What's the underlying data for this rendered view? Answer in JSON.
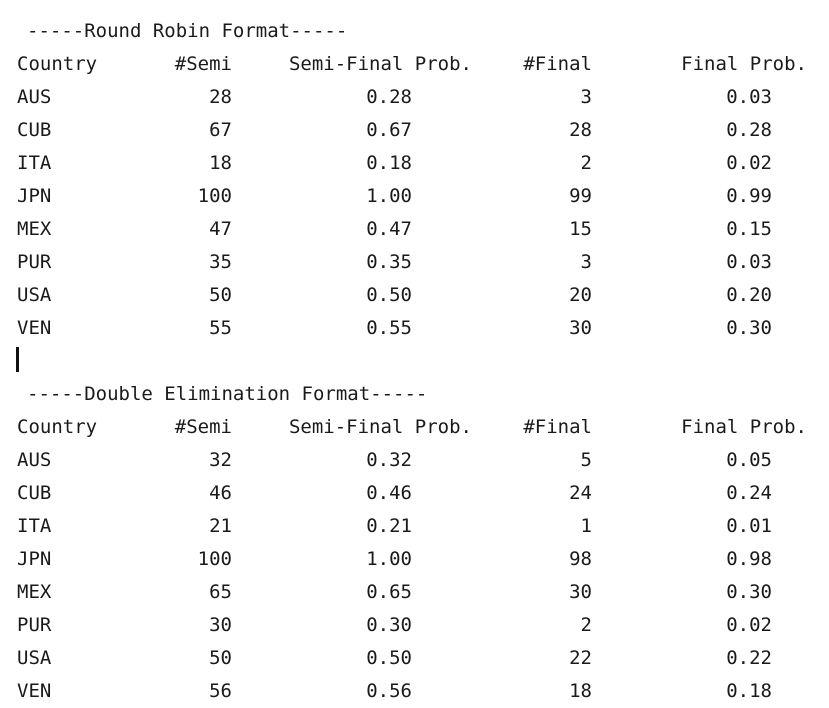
{
  "sections": [
    {
      "title": "-----Round Robin Format-----",
      "headers": [
        "Country",
        "#Semi",
        "Semi-Final Prob.",
        "#Final",
        "Final Prob."
      ],
      "rows": [
        [
          "AUS",
          "28",
          "0.28",
          "3",
          "0.03"
        ],
        [
          "CUB",
          "67",
          "0.67",
          "28",
          "0.28"
        ],
        [
          "ITA",
          "18",
          "0.18",
          "2",
          "0.02"
        ],
        [
          "JPN",
          "100",
          "1.00",
          "99",
          "0.99"
        ],
        [
          "MEX",
          "47",
          "0.47",
          "15",
          "0.15"
        ],
        [
          "PUR",
          "35",
          "0.35",
          "3",
          "0.03"
        ],
        [
          "USA",
          "50",
          "0.50",
          "20",
          "0.20"
        ],
        [
          "VEN",
          "55",
          "0.55",
          "30",
          "0.30"
        ]
      ]
    },
    {
      "title": "-----Double Elimination Format-----",
      "headers": [
        "Country",
        "#Semi",
        "Semi-Final Prob.",
        "#Final",
        "Final Prob."
      ],
      "rows": [
        [
          "AUS",
          "32",
          "0.32",
          "5",
          "0.05"
        ],
        [
          "CUB",
          "46",
          "0.46",
          "24",
          "0.24"
        ],
        [
          "ITA",
          "21",
          "0.21",
          "1",
          "0.01"
        ],
        [
          "JPN",
          "100",
          "1.00",
          "98",
          "0.98"
        ],
        [
          "MEX",
          "65",
          "0.65",
          "30",
          "0.30"
        ],
        [
          "PUR",
          "30",
          "0.30",
          "2",
          "0.02"
        ],
        [
          "USA",
          "50",
          "0.50",
          "22",
          "0.22"
        ],
        [
          "VEN",
          "56",
          "0.56",
          "18",
          "0.18"
        ]
      ]
    }
  ]
}
